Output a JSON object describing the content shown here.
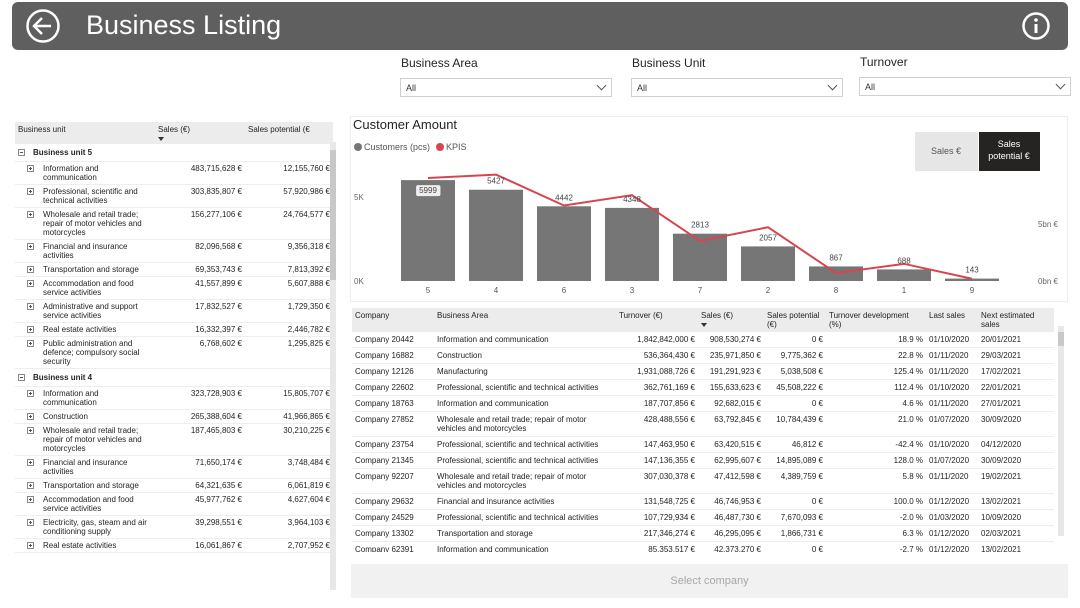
{
  "header": {
    "title": "Business Listing"
  },
  "filters": [
    {
      "label": "Business Area",
      "value": "All"
    },
    {
      "label": "Business Unit",
      "value": "All"
    },
    {
      "label": "Turnover",
      "value": "All"
    }
  ],
  "unit_table": {
    "columns": [
      "Business unit",
      "Sales (€)",
      "Sales potential (€"
    ],
    "groups": [
      {
        "name": "Business unit 5",
        "rows": [
          [
            "Information and communication",
            "483,715,628 €",
            "12,155,760 €"
          ],
          [
            "Professional, scientific and technical activities",
            "303,835,807 €",
            "57,920,986 €"
          ],
          [
            "Wholesale and retail trade; repair of motor vehicles and motorcycles",
            "156,277,106 €",
            "24,764,577 €"
          ],
          [
            "Financial and insurance activities",
            "82,096,568 €",
            "9,356,318 €"
          ],
          [
            "Transportation and storage",
            "69,353,743 €",
            "7,813,392 €"
          ],
          [
            "Accommodation and food service activities",
            "41,557,899 €",
            "5,607,888 €"
          ],
          [
            "Administrative and support service activities",
            "17,832,527 €",
            "1,729,350 €"
          ],
          [
            "Real estate activities",
            "16,332,397 €",
            "2,446,782 €"
          ],
          [
            "Public administration and defence; compulsory social security",
            "6,768,602 €",
            "1,295,825 €"
          ]
        ]
      },
      {
        "name": "Business unit 4",
        "rows": [
          [
            "Information and communication",
            "323,728,903 €",
            "15,805,707 €"
          ],
          [
            "Construction",
            "265,388,604 €",
            "41,966,865 €"
          ],
          [
            "Wholesale and retail trade; repair of motor vehicles and motorcycles",
            "187,465,803 €",
            "30,210,225 €"
          ],
          [
            "Financial and insurance activities",
            "71,650,174 €",
            "3,748,484 €"
          ],
          [
            "Transportation and storage",
            "64,321,635 €",
            "6,061,819 €"
          ],
          [
            "Accommodation and food service activities",
            "45,977,762 €",
            "4,627,604 €"
          ],
          [
            "Electricity, gas, steam and air conditioning supply",
            "39,298,551 €",
            "3,964,103 €"
          ],
          [
            "Real estate activities",
            "16,061,867 €",
            "2,707,952 €"
          ]
        ]
      }
    ]
  },
  "chart_toggle": [
    "Sales €",
    "Sales potential €"
  ],
  "chart_data": {
    "type": "bar",
    "title": "Customer Amount",
    "categories": [
      "5",
      "4",
      "6",
      "3",
      "7",
      "2",
      "8",
      "1",
      "9"
    ],
    "series": [
      {
        "name": "Customers (pcs)",
        "color": "#767676",
        "values": [
          5999,
          5427,
          4442,
          4348,
          2813,
          2057,
          867,
          688,
          143
        ]
      },
      {
        "name": "KPIS",
        "color": "#d64550",
        "type": "line",
        "axis": "y2",
        "values": [
          9000000000,
          9300000000,
          6600000000,
          7500000000,
          3500000000,
          4700000000,
          700000000,
          1500000000,
          200000000
        ]
      }
    ],
    "ylim": [
      0,
      6600
    ],
    "yticks": [
      {
        "value": 0,
        "label": "0K"
      },
      {
        "value": 5000,
        "label": "5K"
      }
    ],
    "y2lim": [
      0,
      9700000000
    ],
    "y2ticks": [
      {
        "value": 0,
        "label": "0bn €"
      },
      {
        "value": 5000000000,
        "label": "5bn €"
      }
    ]
  },
  "company_table": {
    "columns": [
      "Company",
      "Business Area",
      "Turnover (€)",
      "Sales (€)",
      "Sales potential (€)",
      "Turnover development (%)",
      "Last sales",
      "Next estimated sales"
    ],
    "rows": [
      [
        "Company 20442",
        "Information and communication",
        "1,842,842,000 €",
        "908,530,274 €",
        "0 €",
        "18.9 %",
        "01/10/2020",
        "20/01/2021"
      ],
      [
        "Company 16882",
        "Construction",
        "536,364,430 €",
        "235,971,850 €",
        "9,775,362 €",
        "22.8 %",
        "01/11/2020",
        "29/03/2021"
      ],
      [
        "Company 12126",
        "Manufacturing",
        "1,931,088,726 €",
        "191,291,923 €",
        "5,038,508 €",
        "125.4 %",
        "01/11/2020",
        "17/02/2021"
      ],
      [
        "Company 22602",
        "Professional, scientific and technical activities",
        "362,761,169 €",
        "155,633,623 €",
        "45,508,222 €",
        "112.4 %",
        "01/10/2020",
        "22/01/2021"
      ],
      [
        "Company 18763",
        "Information and communication",
        "187,707,856 €",
        "92,682,015 €",
        "0 €",
        "4.6 %",
        "01/11/2020",
        "27/01/2021"
      ],
      [
        "Company 27852",
        "Wholesale and retail trade; repair of motor vehicles and motorcycles",
        "428,488,556 €",
        "63,792,845 €",
        "10,784,439 €",
        "21.0 %",
        "01/07/2020",
        "30/09/2020"
      ],
      [
        "Company 23754",
        "Professional, scientific and technical activities",
        "147,463,950 €",
        "63,420,515 €",
        "46,812 €",
        "-42.4 %",
        "01/10/2020",
        "04/12/2020"
      ],
      [
        "Company 21345",
        "Professional, scientific and technical activities",
        "147,136,355 €",
        "62,995,607 €",
        "14,895,089 €",
        "128.0 %",
        "01/07/2020",
        "30/09/2020"
      ],
      [
        "Company 92207",
        "Wholesale and retail trade; repair of motor vehicles and motorcycles",
        "307,030,378 €",
        "47,412,598 €",
        "4,389,759 €",
        "5.8 %",
        "01/11/2020",
        "19/02/2021"
      ],
      [
        "Company 29632",
        "Financial and insurance activities",
        "131,548,725 €",
        "46,746,953 €",
        "0 €",
        "100.0 %",
        "01/12/2020",
        "13/02/2021"
      ],
      [
        "Company 24529",
        "Professional, scientific and technical activities",
        "107,729,934 €",
        "46,487,730 €",
        "7,670,093 €",
        "-2.0 %",
        "01/03/2020",
        "10/09/2020"
      ],
      [
        "Company 13302",
        "Transportation and storage",
        "217,346,274 €",
        "46,295,095 €",
        "1,866,731 €",
        "6.3 %",
        "01/12/2020",
        "02/03/2021"
      ],
      [
        "Company 62391",
        "Information and communication",
        "85,353,517 €",
        "42,373,270 €",
        "0 €",
        "-2.7 %",
        "01/12/2020",
        "13/02/2021"
      ]
    ]
  },
  "footer_button": "Select company"
}
